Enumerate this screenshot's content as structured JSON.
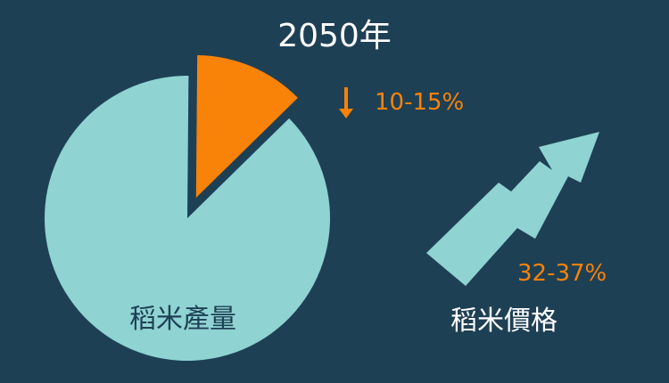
{
  "title": "2050年",
  "colors": {
    "background": "#1e4055",
    "light": "#8fd3d2",
    "accent": "#f98209",
    "text_light": "#ffffff",
    "text_dark": "#1e4055"
  },
  "chart_data": [
    {
      "type": "pie",
      "label": "稻米產量",
      "slices": [
        {
          "name": "remaining",
          "value": 87.5
        },
        {
          "name": "decrease",
          "value": 12.5,
          "exploded": true
        }
      ],
      "annotation": {
        "icon": "down-arrow-icon",
        "text": "10-15%"
      }
    },
    {
      "type": "trend-arrow",
      "label": "稻米價格",
      "direction": "up",
      "annotation": {
        "text": "32-37%"
      }
    }
  ]
}
